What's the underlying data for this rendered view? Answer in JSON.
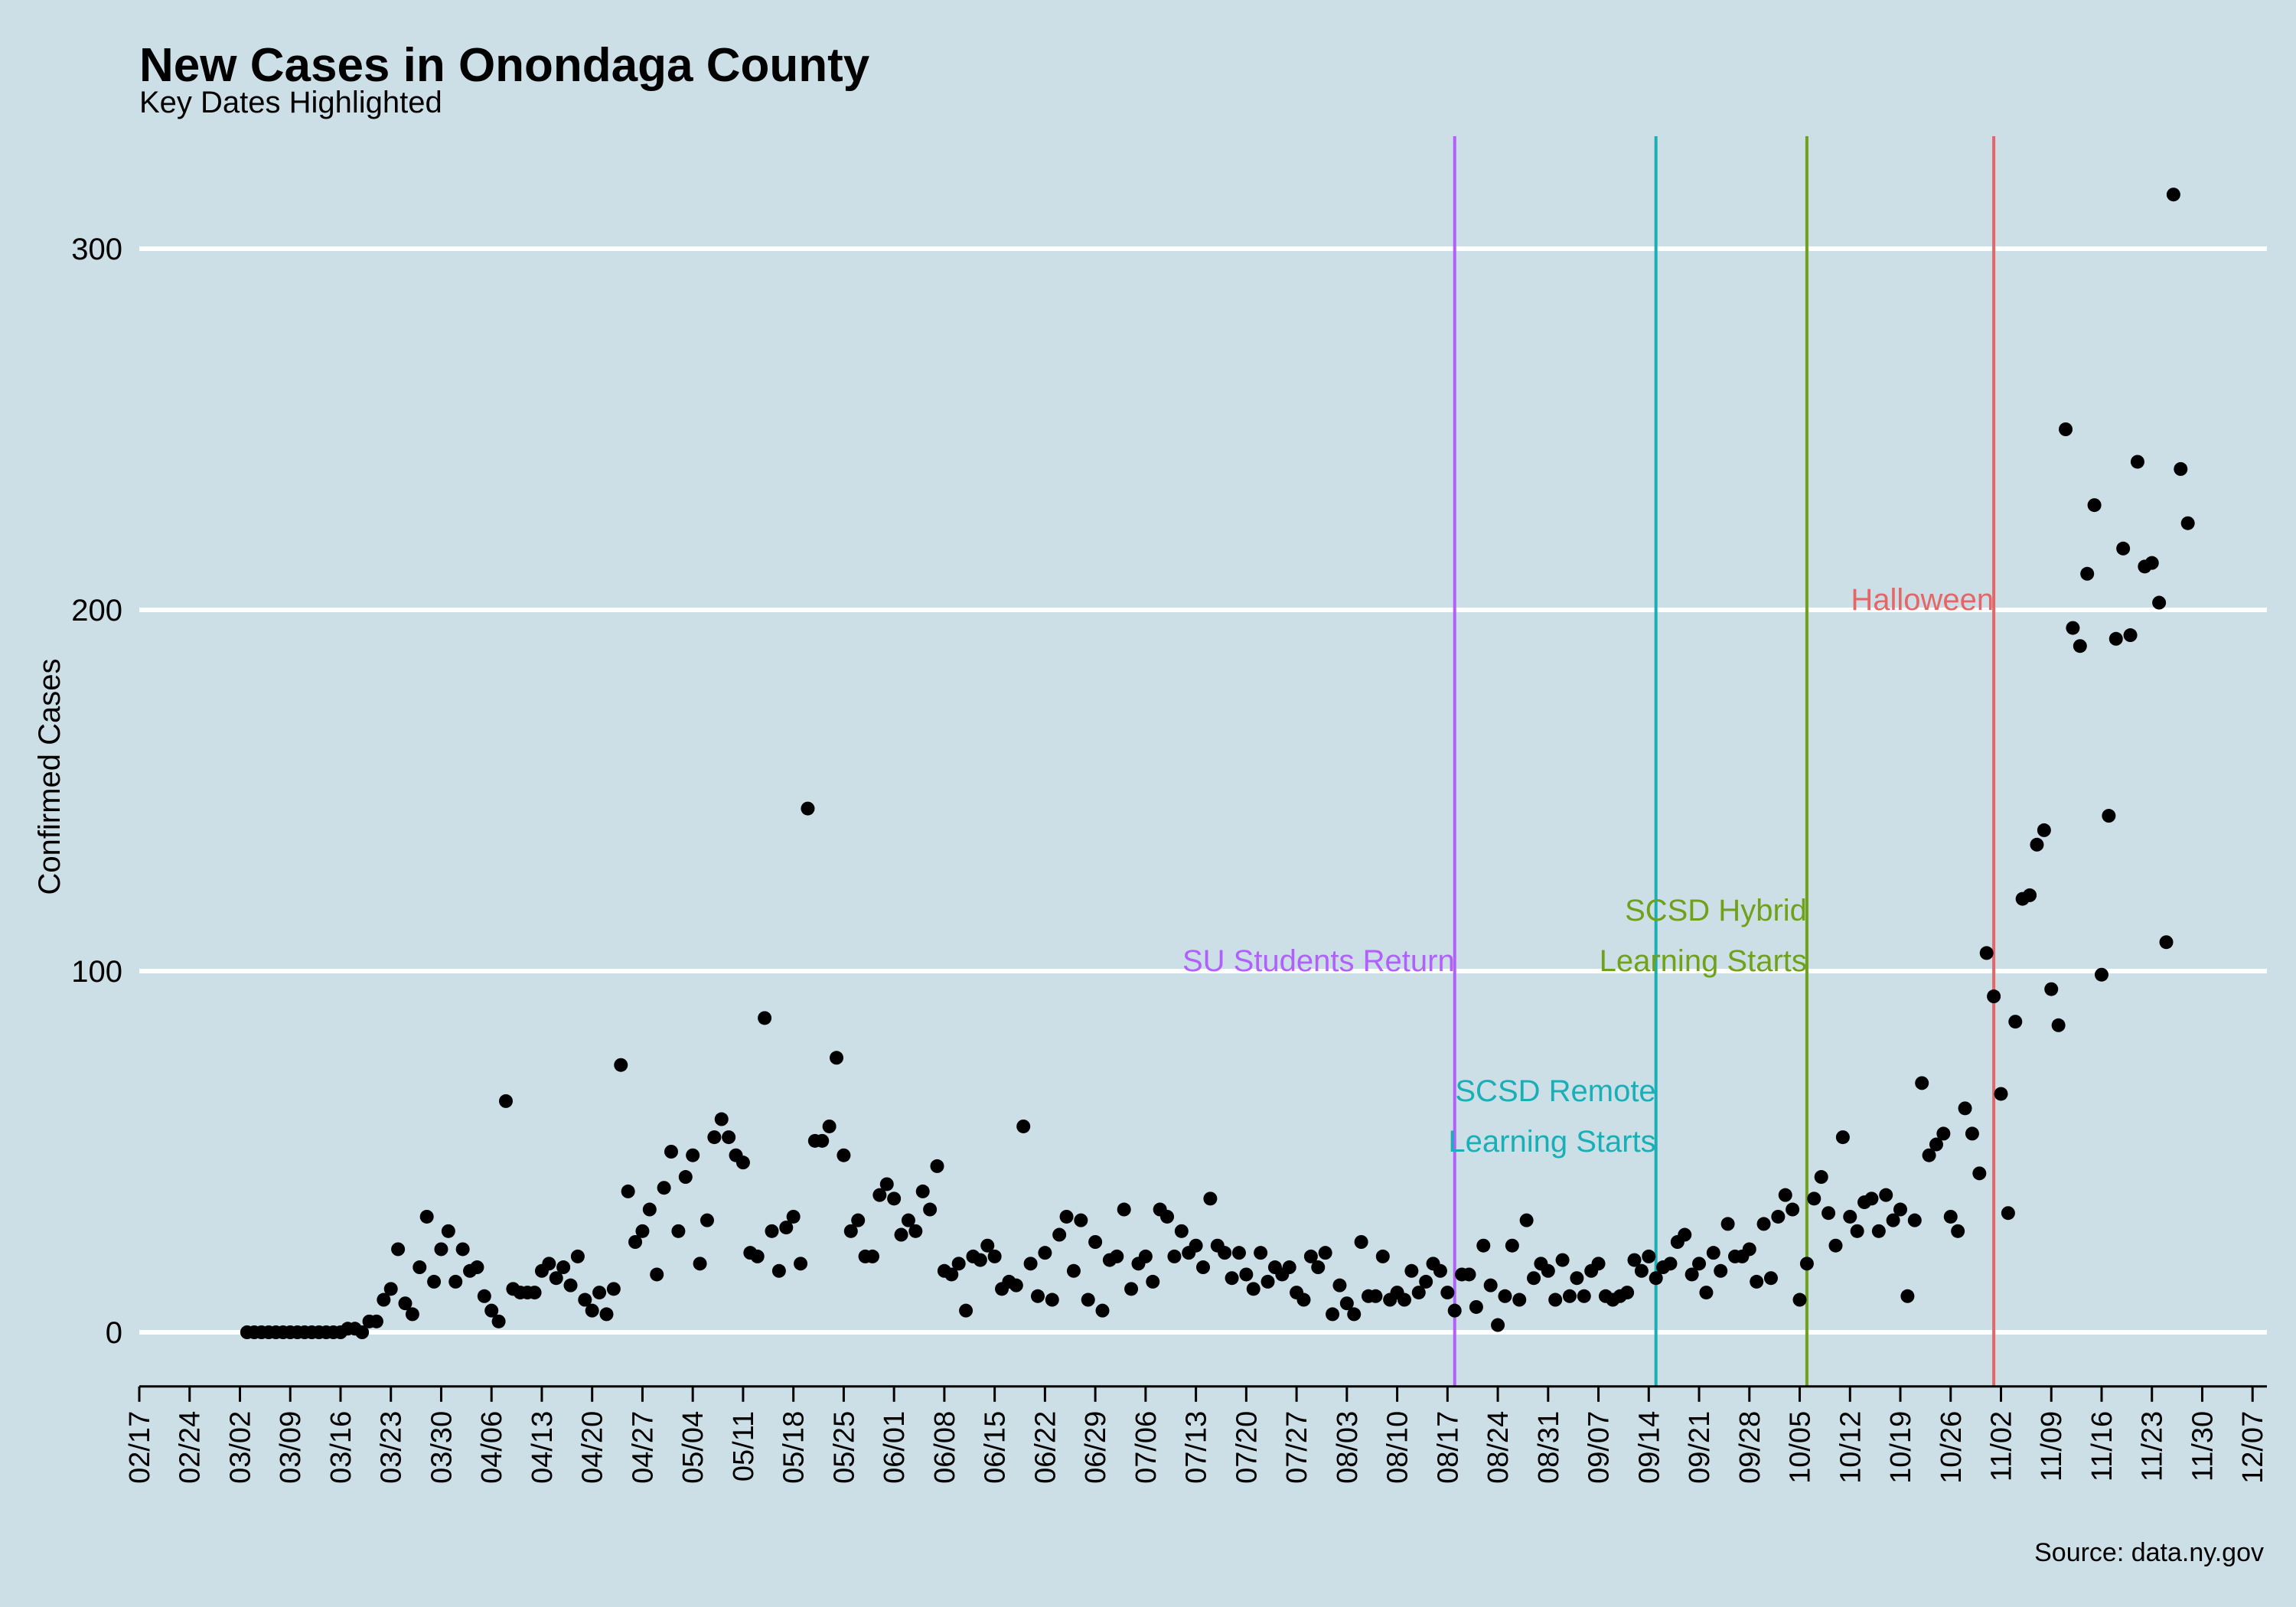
{
  "chart_data": {
    "type": "scatter",
    "title": "New Cases in Onondaga County",
    "subtitle": "Key Dates Highlighted",
    "ylabel": "Confirmed Cases",
    "xlabel": "",
    "caption": "Source: data.ny.gov",
    "grid": "horizontal major lines only",
    "point_color": "#000000",
    "x_date_range": [
      "2020-02-17",
      "2020-12-09"
    ],
    "ylim": [
      -15,
      330
    ],
    "x_ticks": [
      {
        "date": "2020-02-17",
        "label": "02/17"
      },
      {
        "date": "2020-02-24",
        "label": "02/24"
      },
      {
        "date": "2020-03-02",
        "label": "03/02"
      },
      {
        "date": "2020-03-09",
        "label": "03/09"
      },
      {
        "date": "2020-03-16",
        "label": "03/16"
      },
      {
        "date": "2020-03-23",
        "label": "03/23"
      },
      {
        "date": "2020-03-30",
        "label": "03/30"
      },
      {
        "date": "2020-04-06",
        "label": "04/06"
      },
      {
        "date": "2020-04-13",
        "label": "04/13"
      },
      {
        "date": "2020-04-20",
        "label": "04/20"
      },
      {
        "date": "2020-04-27",
        "label": "04/27"
      },
      {
        "date": "2020-05-04",
        "label": "05/04"
      },
      {
        "date": "2020-05-11",
        "label": "05/11"
      },
      {
        "date": "2020-05-18",
        "label": "05/18"
      },
      {
        "date": "2020-05-25",
        "label": "05/25"
      },
      {
        "date": "2020-06-01",
        "label": "06/01"
      },
      {
        "date": "2020-06-08",
        "label": "06/08"
      },
      {
        "date": "2020-06-15",
        "label": "06/15"
      },
      {
        "date": "2020-06-22",
        "label": "06/22"
      },
      {
        "date": "2020-06-29",
        "label": "06/29"
      },
      {
        "date": "2020-07-06",
        "label": "07/06"
      },
      {
        "date": "2020-07-13",
        "label": "07/13"
      },
      {
        "date": "2020-07-20",
        "label": "07/20"
      },
      {
        "date": "2020-07-27",
        "label": "07/27"
      },
      {
        "date": "2020-08-03",
        "label": "08/03"
      },
      {
        "date": "2020-08-10",
        "label": "08/10"
      },
      {
        "date": "2020-08-17",
        "label": "08/17"
      },
      {
        "date": "2020-08-24",
        "label": "08/24"
      },
      {
        "date": "2020-08-31",
        "label": "08/31"
      },
      {
        "date": "2020-09-07",
        "label": "09/07"
      },
      {
        "date": "2020-09-14",
        "label": "09/14"
      },
      {
        "date": "2020-09-21",
        "label": "09/21"
      },
      {
        "date": "2020-09-28",
        "label": "09/28"
      },
      {
        "date": "2020-10-05",
        "label": "10/05"
      },
      {
        "date": "2020-10-12",
        "label": "10/12"
      },
      {
        "date": "2020-10-19",
        "label": "10/19"
      },
      {
        "date": "2020-10-26",
        "label": "10/26"
      },
      {
        "date": "2020-11-02",
        "label": "11/02"
      },
      {
        "date": "2020-11-09",
        "label": "11/09"
      },
      {
        "date": "2020-11-16",
        "label": "11/16"
      },
      {
        "date": "2020-11-23",
        "label": "11/23"
      },
      {
        "date": "2020-11-30",
        "label": "11/30"
      },
      {
        "date": "2020-12-07",
        "label": "12/07"
      }
    ],
    "y_ticks": [
      0,
      100,
      200,
      300
    ],
    "events": [
      {
        "date": "2020-08-18",
        "label_lines": [
          "SU Students Return"
        ],
        "color": "#b15fff",
        "label_y": [
          103
        ]
      },
      {
        "date": "2020-09-15",
        "label_lines": [
          "SCSD Remote",
          "Learning Starts"
        ],
        "color": "#1aaeb6",
        "label_y": [
          67,
          53
        ]
      },
      {
        "date": "2020-10-06",
        "label_lines": [
          "SCSD Hybrid",
          "Learning Starts"
        ],
        "color": "#6fa11b",
        "label_y": [
          117,
          103
        ]
      },
      {
        "date": "2020-11-01",
        "label_lines": [
          "Halloween"
        ],
        "color": "#e46666",
        "label_y": [
          203
        ]
      }
    ],
    "points": [
      [
        "2020-03-03",
        0
      ],
      [
        "2020-03-04",
        0
      ],
      [
        "2020-03-05",
        0
      ],
      [
        "2020-03-06",
        0
      ],
      [
        "2020-03-07",
        0
      ],
      [
        "2020-03-08",
        0
      ],
      [
        "2020-03-09",
        0
      ],
      [
        "2020-03-10",
        0
      ],
      [
        "2020-03-11",
        0
      ],
      [
        "2020-03-12",
        0
      ],
      [
        "2020-03-13",
        0
      ],
      [
        "2020-03-14",
        0
      ],
      [
        "2020-03-15",
        0
      ],
      [
        "2020-03-16",
        0
      ],
      [
        "2020-03-17",
        1
      ],
      [
        "2020-03-18",
        1
      ],
      [
        "2020-03-19",
        0
      ],
      [
        "2020-03-20",
        3
      ],
      [
        "2020-03-21",
        3
      ],
      [
        "2020-03-22",
        9
      ],
      [
        "2020-03-23",
        12
      ],
      [
        "2020-03-24",
        23
      ],
      [
        "2020-03-25",
        8
      ],
      [
        "2020-03-26",
        5
      ],
      [
        "2020-03-27",
        18
      ],
      [
        "2020-03-28",
        32
      ],
      [
        "2020-03-29",
        14
      ],
      [
        "2020-03-30",
        23
      ],
      [
        "2020-03-31",
        28
      ],
      [
        "2020-04-01",
        14
      ],
      [
        "2020-04-02",
        23
      ],
      [
        "2020-04-03",
        17
      ],
      [
        "2020-04-04",
        18
      ],
      [
        "2020-04-05",
        10
      ],
      [
        "2020-04-06",
        6
      ],
      [
        "2020-04-07",
        3
      ],
      [
        "2020-04-08",
        64
      ],
      [
        "2020-04-09",
        12
      ],
      [
        "2020-04-10",
        11
      ],
      [
        "2020-04-11",
        11
      ],
      [
        "2020-04-12",
        11
      ],
      [
        "2020-04-13",
        17
      ],
      [
        "2020-04-14",
        19
      ],
      [
        "2020-04-15",
        15
      ],
      [
        "2020-04-16",
        18
      ],
      [
        "2020-04-17",
        13
      ],
      [
        "2020-04-18",
        21
      ],
      [
        "2020-04-19",
        9
      ],
      [
        "2020-04-20",
        6
      ],
      [
        "2020-04-21",
        11
      ],
      [
        "2020-04-22",
        5
      ],
      [
        "2020-04-23",
        12
      ],
      [
        "2020-04-24",
        74
      ],
      [
        "2020-04-25",
        39
      ],
      [
        "2020-04-26",
        25
      ],
      [
        "2020-04-27",
        28
      ],
      [
        "2020-04-28",
        34
      ],
      [
        "2020-04-29",
        16
      ],
      [
        "2020-04-30",
        40
      ],
      [
        "2020-05-01",
        50
      ],
      [
        "2020-05-02",
        28
      ],
      [
        "2020-05-03",
        43
      ],
      [
        "2020-05-04",
        49
      ],
      [
        "2020-05-05",
        19
      ],
      [
        "2020-05-06",
        31
      ],
      [
        "2020-05-07",
        54
      ],
      [
        "2020-05-08",
        59
      ],
      [
        "2020-05-09",
        54
      ],
      [
        "2020-05-10",
        49
      ],
      [
        "2020-05-11",
        47
      ],
      [
        "2020-05-12",
        22
      ],
      [
        "2020-05-13",
        21
      ],
      [
        "2020-05-14",
        87
      ],
      [
        "2020-05-15",
        28
      ],
      [
        "2020-05-16",
        17
      ],
      [
        "2020-05-17",
        29
      ],
      [
        "2020-05-18",
        32
      ],
      [
        "2020-05-19",
        19
      ],
      [
        "2020-05-20",
        145
      ],
      [
        "2020-05-21",
        53
      ],
      [
        "2020-05-22",
        53
      ],
      [
        "2020-05-23",
        57
      ],
      [
        "2020-05-24",
        76
      ],
      [
        "2020-05-25",
        49
      ],
      [
        "2020-05-26",
        28
      ],
      [
        "2020-05-27",
        31
      ],
      [
        "2020-05-28",
        21
      ],
      [
        "2020-05-29",
        21
      ],
      [
        "2020-05-30",
        38
      ],
      [
        "2020-05-31",
        41
      ],
      [
        "2020-06-01",
        37
      ],
      [
        "2020-06-02",
        27
      ],
      [
        "2020-06-03",
        31
      ],
      [
        "2020-06-04",
        28
      ],
      [
        "2020-06-05",
        39
      ],
      [
        "2020-06-06",
        34
      ],
      [
        "2020-06-07",
        46
      ],
      [
        "2020-06-08",
        17
      ],
      [
        "2020-06-09",
        16
      ],
      [
        "2020-06-10",
        19
      ],
      [
        "2020-06-11",
        6
      ],
      [
        "2020-06-12",
        21
      ],
      [
        "2020-06-13",
        20
      ],
      [
        "2020-06-14",
        24
      ],
      [
        "2020-06-15",
        21
      ],
      [
        "2020-06-16",
        12
      ],
      [
        "2020-06-17",
        14
      ],
      [
        "2020-06-18",
        13
      ],
      [
        "2020-06-19",
        57
      ],
      [
        "2020-06-20",
        19
      ],
      [
        "2020-06-21",
        10
      ],
      [
        "2020-06-22",
        22
      ],
      [
        "2020-06-23",
        9
      ],
      [
        "2020-06-24",
        27
      ],
      [
        "2020-06-25",
        32
      ],
      [
        "2020-06-26",
        17
      ],
      [
        "2020-06-27",
        31
      ],
      [
        "2020-06-28",
        9
      ],
      [
        "2020-06-29",
        25
      ],
      [
        "2020-06-30",
        6
      ],
      [
        "2020-07-01",
        20
      ],
      [
        "2020-07-02",
        21
      ],
      [
        "2020-07-03",
        34
      ],
      [
        "2020-07-04",
        12
      ],
      [
        "2020-07-05",
        19
      ],
      [
        "2020-07-06",
        21
      ],
      [
        "2020-07-07",
        14
      ],
      [
        "2020-07-08",
        34
      ],
      [
        "2020-07-09",
        32
      ],
      [
        "2020-07-10",
        21
      ],
      [
        "2020-07-11",
        28
      ],
      [
        "2020-07-12",
        22
      ],
      [
        "2020-07-13",
        24
      ],
      [
        "2020-07-14",
        18
      ],
      [
        "2020-07-15",
        37
      ],
      [
        "2020-07-16",
        24
      ],
      [
        "2020-07-17",
        22
      ],
      [
        "2020-07-18",
        15
      ],
      [
        "2020-07-19",
        22
      ],
      [
        "2020-07-20",
        16
      ],
      [
        "2020-07-21",
        12
      ],
      [
        "2020-07-22",
        22
      ],
      [
        "2020-07-23",
        14
      ],
      [
        "2020-07-24",
        18
      ],
      [
        "2020-07-25",
        16
      ],
      [
        "2020-07-26",
        18
      ],
      [
        "2020-07-27",
        11
      ],
      [
        "2020-07-28",
        9
      ],
      [
        "2020-07-29",
        21
      ],
      [
        "2020-07-30",
        18
      ],
      [
        "2020-07-31",
        22
      ],
      [
        "2020-08-01",
        5
      ],
      [
        "2020-08-02",
        13
      ],
      [
        "2020-08-03",
        8
      ],
      [
        "2020-08-04",
        5
      ],
      [
        "2020-08-05",
        25
      ],
      [
        "2020-08-06",
        10
      ],
      [
        "2020-08-07",
        10
      ],
      [
        "2020-08-08",
        21
      ],
      [
        "2020-08-09",
        9
      ],
      [
        "2020-08-10",
        11
      ],
      [
        "2020-08-11",
        9
      ],
      [
        "2020-08-12",
        17
      ],
      [
        "2020-08-13",
        11
      ],
      [
        "2020-08-14",
        14
      ],
      [
        "2020-08-15",
        19
      ],
      [
        "2020-08-16",
        17
      ],
      [
        "2020-08-17",
        11
      ],
      [
        "2020-08-18",
        6
      ],
      [
        "2020-08-19",
        16
      ],
      [
        "2020-08-20",
        16
      ],
      [
        "2020-08-21",
        7
      ],
      [
        "2020-08-22",
        24
      ],
      [
        "2020-08-23",
        13
      ],
      [
        "2020-08-24",
        2
      ],
      [
        "2020-08-25",
        10
      ],
      [
        "2020-08-26",
        24
      ],
      [
        "2020-08-27",
        9
      ],
      [
        "2020-08-28",
        31
      ],
      [
        "2020-08-29",
        15
      ],
      [
        "2020-08-30",
        19
      ],
      [
        "2020-08-31",
        17
      ],
      [
        "2020-09-01",
        9
      ],
      [
        "2020-09-02",
        20
      ],
      [
        "2020-09-03",
        10
      ],
      [
        "2020-09-04",
        15
      ],
      [
        "2020-09-05",
        10
      ],
      [
        "2020-09-06",
        17
      ],
      [
        "2020-09-07",
        19
      ],
      [
        "2020-09-08",
        10
      ],
      [
        "2020-09-09",
        9
      ],
      [
        "2020-09-10",
        10
      ],
      [
        "2020-09-11",
        11
      ],
      [
        "2020-09-12",
        20
      ],
      [
        "2020-09-13",
        17
      ],
      [
        "2020-09-14",
        21
      ],
      [
        "2020-09-15",
        15
      ],
      [
        "2020-09-16",
        18
      ],
      [
        "2020-09-17",
        19
      ],
      [
        "2020-09-18",
        25
      ],
      [
        "2020-09-19",
        27
      ],
      [
        "2020-09-20",
        16
      ],
      [
        "2020-09-21",
        19
      ],
      [
        "2020-09-22",
        11
      ],
      [
        "2020-09-23",
        22
      ],
      [
        "2020-09-24",
        17
      ],
      [
        "2020-09-25",
        30
      ],
      [
        "2020-09-26",
        21
      ],
      [
        "2020-09-27",
        21
      ],
      [
        "2020-09-28",
        23
      ],
      [
        "2020-09-29",
        14
      ],
      [
        "2020-09-30",
        30
      ],
      [
        "2020-10-01",
        15
      ],
      [
        "2020-10-02",
        32
      ],
      [
        "2020-10-03",
        38
      ],
      [
        "2020-10-04",
        34
      ],
      [
        "2020-10-05",
        9
      ],
      [
        "2020-10-06",
        19
      ],
      [
        "2020-10-07",
        37
      ],
      [
        "2020-10-08",
        43
      ],
      [
        "2020-10-09",
        33
      ],
      [
        "2020-10-10",
        24
      ],
      [
        "2020-10-11",
        54
      ],
      [
        "2020-10-12",
        32
      ],
      [
        "2020-10-13",
        28
      ],
      [
        "2020-10-14",
        36
      ],
      [
        "2020-10-15",
        37
      ],
      [
        "2020-10-16",
        28
      ],
      [
        "2020-10-17",
        38
      ],
      [
        "2020-10-18",
        31
      ],
      [
        "2020-10-19",
        34
      ],
      [
        "2020-10-20",
        10
      ],
      [
        "2020-10-21",
        31
      ],
      [
        "2020-10-22",
        69
      ],
      [
        "2020-10-23",
        49
      ],
      [
        "2020-10-24",
        52
      ],
      [
        "2020-10-25",
        55
      ],
      [
        "2020-10-26",
        32
      ],
      [
        "2020-10-27",
        28
      ],
      [
        "2020-10-28",
        62
      ],
      [
        "2020-10-29",
        55
      ],
      [
        "2020-10-30",
        44
      ],
      [
        "2020-10-31",
        105
      ],
      [
        "2020-11-01",
        93
      ],
      [
        "2020-11-02",
        66
      ],
      [
        "2020-11-03",
        33
      ],
      [
        "2020-11-04",
        86
      ],
      [
        "2020-11-05",
        120
      ],
      [
        "2020-11-06",
        121
      ],
      [
        "2020-11-07",
        135
      ],
      [
        "2020-11-08",
        139
      ],
      [
        "2020-11-09",
        95
      ],
      [
        "2020-11-10",
        85
      ],
      [
        "2020-11-11",
        250
      ],
      [
        "2020-11-12",
        195
      ],
      [
        "2020-11-13",
        190
      ],
      [
        "2020-11-14",
        210
      ],
      [
        "2020-11-15",
        229
      ],
      [
        "2020-11-16",
        99
      ],
      [
        "2020-11-17",
        143
      ],
      [
        "2020-11-18",
        192
      ],
      [
        "2020-11-19",
        217
      ],
      [
        "2020-11-20",
        193
      ],
      [
        "2020-11-21",
        241
      ],
      [
        "2020-11-22",
        212
      ],
      [
        "2020-11-23",
        213
      ],
      [
        "2020-11-24",
        202
      ],
      [
        "2020-11-25",
        108
      ],
      [
        "2020-11-26",
        315
      ],
      [
        "2020-11-27",
        239
      ],
      [
        "2020-11-28",
        224
      ]
    ]
  }
}
